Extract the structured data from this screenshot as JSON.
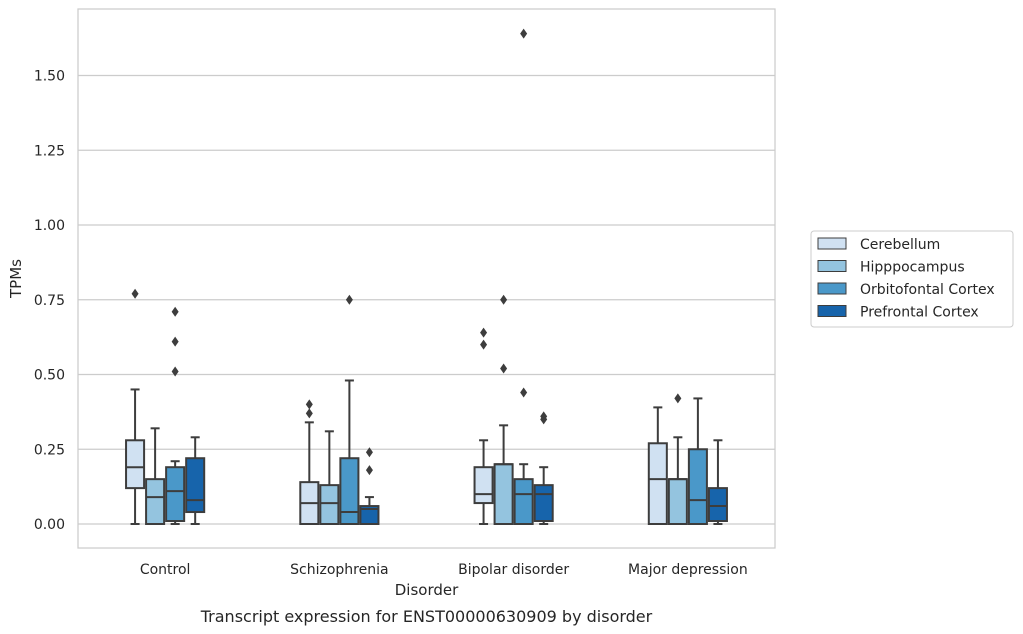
{
  "chart_data": {
    "type": "box",
    "title": "",
    "caption": "Transcript expression for ENST00000630909 by disorder",
    "xlabel": "Disorder",
    "ylabel": "TPMs",
    "ylim": [
      -0.08,
      1.72
    ],
    "yticks": [
      0.0,
      0.25,
      0.5,
      0.75,
      1.0,
      1.25,
      1.5
    ],
    "ytick_labels": [
      "0.00",
      "0.25",
      "0.50",
      "0.75",
      "1.00",
      "1.25",
      "1.50"
    ],
    "grid": "horizontal",
    "legend_position": "right",
    "categories": [
      "Control",
      "Schizophrenia",
      "Bipolar disorder",
      "Major depression"
    ],
    "series": [
      {
        "name": "Cerebellum",
        "color": "#d0e1f2",
        "boxes": [
          {
            "whisker_low": 0.0,
            "q1": 0.12,
            "median": 0.19,
            "q3": 0.28,
            "whisker_high": 0.45,
            "outliers": [
              0.77
            ]
          },
          {
            "whisker_low": 0.0,
            "q1": 0.0,
            "median": 0.07,
            "q3": 0.14,
            "whisker_high": 0.34,
            "outliers": [
              0.37,
              0.4
            ]
          },
          {
            "whisker_low": 0.0,
            "q1": 0.07,
            "median": 0.1,
            "q3": 0.19,
            "whisker_high": 0.28,
            "outliers": [
              0.6,
              0.64
            ]
          },
          {
            "whisker_low": 0.0,
            "q1": 0.0,
            "median": 0.15,
            "q3": 0.27,
            "whisker_high": 0.39,
            "outliers": []
          }
        ]
      },
      {
        "name": "Hipppocampus",
        "color": "#94c4df",
        "boxes": [
          {
            "whisker_low": 0.0,
            "q1": 0.0,
            "median": 0.09,
            "q3": 0.15,
            "whisker_high": 0.32,
            "outliers": []
          },
          {
            "whisker_low": 0.0,
            "q1": 0.0,
            "median": 0.07,
            "q3": 0.13,
            "whisker_high": 0.31,
            "outliers": []
          },
          {
            "whisker_low": 0.0,
            "q1": 0.0,
            "median": 0.2,
            "q3": 0.2,
            "whisker_high": 0.33,
            "outliers": [
              0.52,
              0.75
            ]
          },
          {
            "whisker_low": 0.0,
            "q1": 0.0,
            "median": 0.15,
            "q3": 0.15,
            "whisker_high": 0.29,
            "outliers": [
              0.42
            ]
          }
        ]
      },
      {
        "name": "Orbitofontal Cortex",
        "color": "#4a98c9",
        "boxes": [
          {
            "whisker_low": 0.0,
            "q1": 0.01,
            "median": 0.11,
            "q3": 0.19,
            "whisker_high": 0.21,
            "outliers": [
              0.51,
              0.61,
              0.71
            ]
          },
          {
            "whisker_low": 0.0,
            "q1": 0.0,
            "median": 0.04,
            "q3": 0.22,
            "whisker_high": 0.48,
            "outliers": [
              0.75
            ]
          },
          {
            "whisker_low": 0.0,
            "q1": 0.0,
            "median": 0.1,
            "q3": 0.15,
            "whisker_high": 0.2,
            "outliers": [
              0.44,
              1.64
            ]
          },
          {
            "whisker_low": 0.0,
            "q1": 0.0,
            "median": 0.08,
            "q3": 0.25,
            "whisker_high": 0.42,
            "outliers": []
          }
        ]
      },
      {
        "name": "Prefrontal Cortex",
        "color": "#1764ab",
        "boxes": [
          {
            "whisker_low": 0.0,
            "q1": 0.04,
            "median": 0.08,
            "q3": 0.22,
            "whisker_high": 0.29,
            "outliers": []
          },
          {
            "whisker_low": 0.0,
            "q1": 0.0,
            "median": 0.05,
            "q3": 0.06,
            "whisker_high": 0.09,
            "outliers": [
              0.18,
              0.24
            ]
          },
          {
            "whisker_low": 0.0,
            "q1": 0.01,
            "median": 0.1,
            "q3": 0.13,
            "whisker_high": 0.19,
            "outliers": [
              0.35,
              0.36
            ]
          },
          {
            "whisker_low": 0.0,
            "q1": 0.01,
            "median": 0.06,
            "q3": 0.12,
            "whisker_high": 0.28,
            "outliers": []
          }
        ]
      }
    ]
  }
}
